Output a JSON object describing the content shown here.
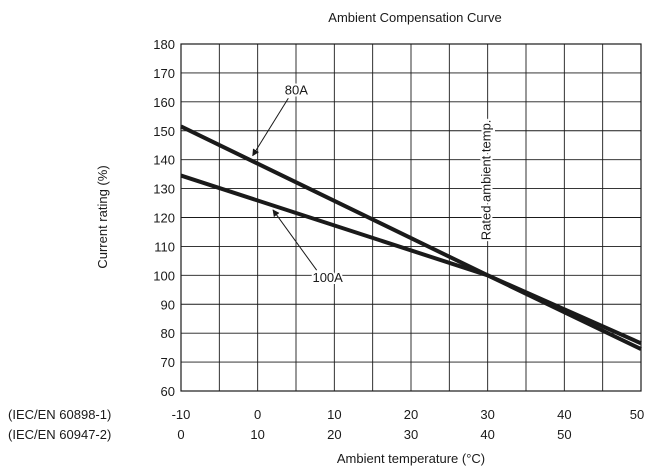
{
  "chart_data": {
    "type": "line",
    "title": "Ambient Compensation Curve",
    "xlabel": "Ambient temperature (°C)",
    "ylabel": "Current rating (%)",
    "xlim": [
      -10,
      50
    ],
    "ylim": [
      60,
      180
    ],
    "grid": true,
    "x_axes": [
      {
        "name": "(IEC/EN 60898-1)",
        "ticks": [
          "-10",
          "0",
          "10",
          "20",
          "30",
          "40",
          "50"
        ],
        "tick_values": [
          -10,
          0,
          10,
          20,
          30,
          40,
          50
        ]
      },
      {
        "name": "(IEC/EN 60947-2)",
        "ticks": [
          "0",
          "10",
          "20",
          "30",
          "40",
          "50"
        ],
        "tick_values": [
          -10,
          0,
          10,
          20,
          30,
          40
        ]
      }
    ],
    "y_ticks": [
      "60",
      "70",
      "80",
      "90",
      "100",
      "110",
      "120",
      "130",
      "140",
      "150",
      "160",
      "170",
      "180"
    ],
    "y_tick_values": [
      60,
      70,
      80,
      90,
      100,
      110,
      120,
      130,
      140,
      150,
      160,
      170,
      180
    ],
    "series": [
      {
        "name": "80A",
        "x": [
          -10,
          30,
          50
        ],
        "values": [
          151.5,
          100,
          74.5
        ]
      },
      {
        "name": "100A",
        "x": [
          -10,
          30,
          50
        ],
        "values": [
          134.5,
          100,
          76.5
        ]
      }
    ],
    "annotations": [
      {
        "text": "80A",
        "label_at": [
          4,
          164
        ],
        "arrow_to": [
          0,
          140
        ]
      },
      {
        "text": "100A",
        "label_at": [
          9,
          99
        ],
        "arrow_to": [
          2,
          124
        ]
      },
      {
        "text": "Rated ambient temp.",
        "x": 30,
        "vertical": true
      }
    ]
  }
}
